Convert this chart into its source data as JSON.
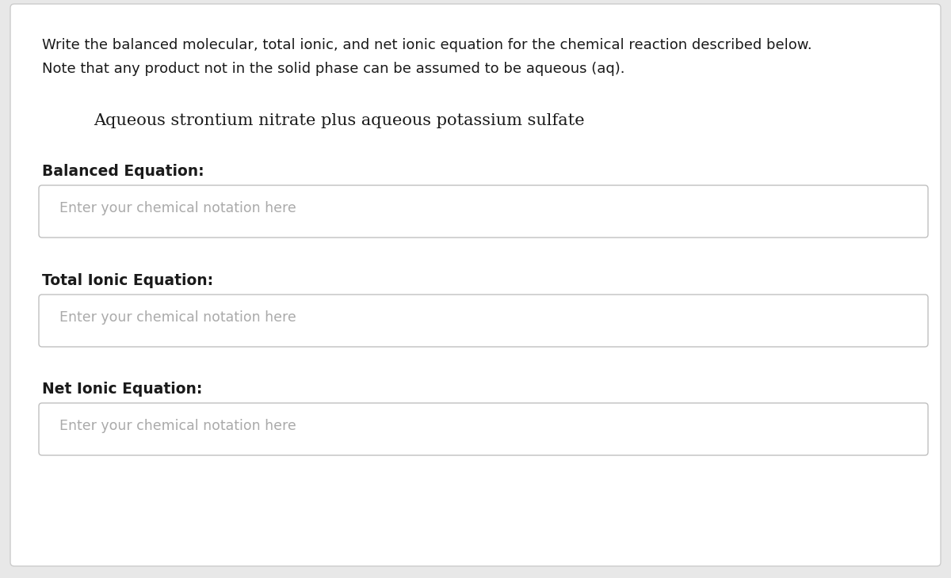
{
  "background_color": "#e8e8e8",
  "card_color": "#ffffff",
  "card_border_color": "#cccccc",
  "instruction_line1": "Write the balanced molecular, total ionic, and net ionic equation for the chemical reaction described below.",
  "instruction_line2": "Note that any product not in the solid phase can be assumed to be aqueous (aq).",
  "reaction_text": "Aqueous strontium nitrate plus aqueous potassium sulfate",
  "label1": "Balanced Equation:",
  "label2": "Total Ionic Equation:",
  "label3": "Net Ionic Equation:",
  "placeholder": "Enter your chemical notation here",
  "instruction_fontsize": 13.0,
  "reaction_fontsize": 15.0,
  "label_fontsize": 13.5,
  "placeholder_fontsize": 12.5,
  "text_color": "#1a1a1a",
  "placeholder_color": "#aaaaaa",
  "input_box_border_color": "#c0c0c0",
  "input_box_bg": "#ffffff",
  "fig_width": 12.0,
  "fig_height": 7.3,
  "dpi": 100
}
